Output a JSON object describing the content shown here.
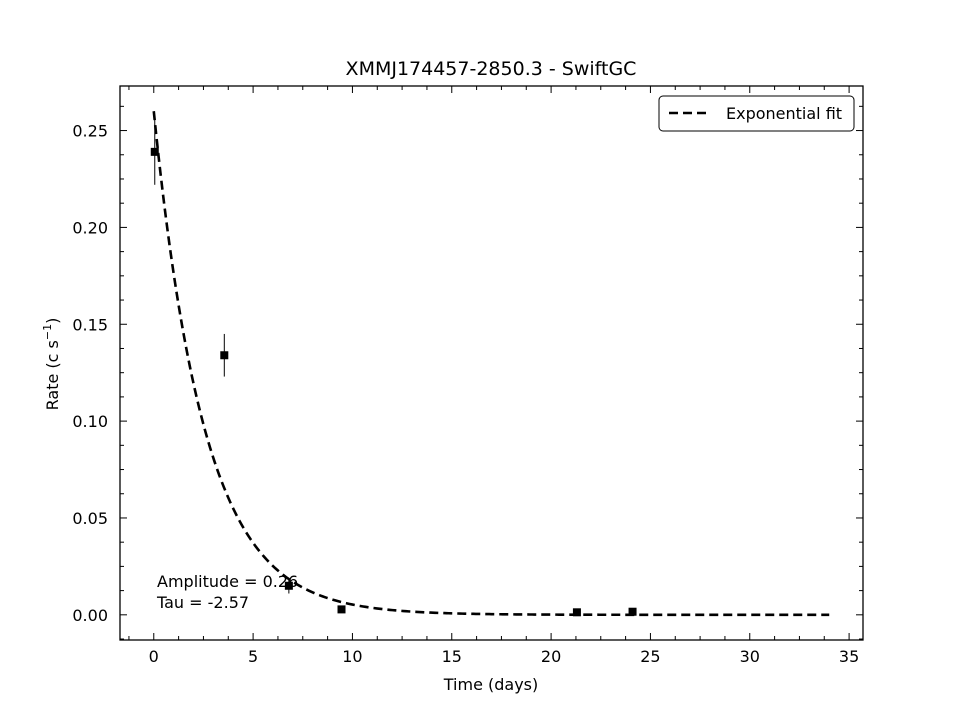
{
  "chart_data": {
    "type": "scatter",
    "title": "XMMJ174457-2850.3 - SwiftGC",
    "xlabel": "Time (days)",
    "ylabel_main": "Rate (c s",
    "ylabel_sup": "−1",
    "ylabel_close": ")",
    "xlim": [
      -1.7,
      35.7
    ],
    "ylim": [
      -0.013,
      0.273
    ],
    "x_ticks": [
      0,
      5,
      10,
      15,
      20,
      25,
      30,
      35
    ],
    "x_tick_labels": [
      "0",
      "5",
      "10",
      "15",
      "20",
      "25",
      "30",
      "35"
    ],
    "y_ticks": [
      0.0,
      0.05,
      0.1,
      0.15,
      0.2,
      0.25
    ],
    "y_tick_labels": [
      "0.00",
      "0.05",
      "0.10",
      "0.15",
      "0.20",
      "0.25"
    ],
    "grid": false,
    "legend_position": "top-right",
    "legend": [
      {
        "label": "Exponential fit",
        "style": "dashed"
      }
    ],
    "data_points": [
      {
        "x": 0.05,
        "y": 0.239,
        "yerr": 0.017
      },
      {
        "x": 3.55,
        "y": 0.134,
        "yerr": 0.011
      },
      {
        "x": 6.8,
        "y": 0.015,
        "yerr": 0.004
      },
      {
        "x": 9.45,
        "y": 0.0028,
        "yerr": 0.0008
      },
      {
        "x": 21.3,
        "y": 0.0013,
        "yerr": 0.0006
      },
      {
        "x": 24.1,
        "y": 0.0016,
        "yerr": 0.0006
      }
    ],
    "fit": {
      "label": "Exponential fit",
      "amplitude": 0.26,
      "tau": 2.57,
      "x_range": [
        0.0,
        34.0
      ]
    },
    "annotations": [
      "Amplitude = 0.26",
      "Tau = -2.57"
    ]
  }
}
